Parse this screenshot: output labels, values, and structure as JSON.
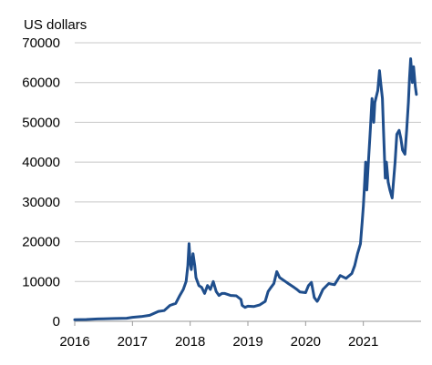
{
  "chart_data": {
    "type": "line",
    "ylabel": "US dollars",
    "xlabel": "",
    "title": "",
    "xlim": [
      2016,
      2022
    ],
    "ylim": [
      0,
      70000
    ],
    "yticks": [
      0,
      10000,
      20000,
      30000,
      40000,
      50000,
      60000,
      70000
    ],
    "ytick_labels": [
      "0",
      "10000",
      "20000",
      "30000",
      "40000",
      "50000",
      "60000",
      "70000"
    ],
    "xticks": [
      2016,
      2017,
      2018,
      2019,
      2020,
      2021
    ],
    "xtick_labels": [
      "2016",
      "2017",
      "2018",
      "2019",
      "2020",
      "2021"
    ],
    "grid": "horizontal",
    "legend": "none",
    "colors": {
      "line": "#1f4e8c",
      "grid": "#c8c8c8",
      "axis": "#999999"
    },
    "series": [
      {
        "x": [
          2016.0,
          2016.2,
          2016.4,
          2016.5,
          2016.7,
          2016.9,
          2017.0,
          2017.15,
          2017.3,
          2017.45,
          2017.55,
          2017.65,
          2017.75,
          2017.82,
          2017.88,
          2017.93,
          2017.96,
          2017.98,
          2018.0,
          2018.02,
          2018.05,
          2018.08,
          2018.1,
          2018.15,
          2018.2,
          2018.25,
          2018.3,
          2018.35,
          2018.4,
          2018.45,
          2018.5,
          2018.55,
          2018.6,
          2018.7,
          2018.8,
          2018.88,
          2018.9,
          2018.95,
          2019.0,
          2019.1,
          2019.2,
          2019.3,
          2019.35,
          2019.4,
          2019.45,
          2019.5,
          2019.55,
          2019.6,
          2019.65,
          2019.7,
          2019.8,
          2019.85,
          2019.9,
          2020.0,
          2020.05,
          2020.1,
          2020.15,
          2020.2,
          2020.22,
          2020.3,
          2020.4,
          2020.5,
          2020.6,
          2020.7,
          2020.8,
          2020.85,
          2020.9,
          2020.95,
          2020.98,
          2021.0,
          2021.02,
          2021.04,
          2021.06,
          2021.08,
          2021.12,
          2021.15,
          2021.18,
          2021.2,
          2021.25,
          2021.28,
          2021.3,
          2021.33,
          2021.35,
          2021.38,
          2021.4,
          2021.43,
          2021.46,
          2021.5,
          2021.55,
          2021.58,
          2021.62,
          2021.65,
          2021.68,
          2021.72,
          2021.75,
          2021.78,
          2021.8,
          2021.82,
          2021.85,
          2021.87,
          2021.9,
          2021.92
        ],
        "y": [
          400,
          450,
          600,
          650,
          700,
          780,
          1000,
          1200,
          1500,
          2500,
          2700,
          4000,
          4500,
          6500,
          8000,
          10000,
          14000,
          19500,
          15000,
          13000,
          17000,
          14000,
          11000,
          9000,
          8500,
          7000,
          9000,
          8000,
          10000,
          7500,
          6500,
          7000,
          7000,
          6500,
          6400,
          5500,
          4000,
          3500,
          3800,
          3700,
          4100,
          5000,
          7500,
          8500,
          9500,
          12500,
          11000,
          10500,
          10000,
          9500,
          8500,
          8000,
          7400,
          7200,
          9000,
          9800,
          6000,
          5000,
          5500,
          8000,
          9500,
          9200,
          11500,
          10800,
          12000,
          14000,
          17000,
          19500,
          25000,
          29000,
          34000,
          40000,
          33000,
          38000,
          48000,
          56000,
          50000,
          55000,
          58000,
          63000,
          60000,
          56000,
          48000,
          36000,
          40000,
          35000,
          33000,
          31000,
          40000,
          47000,
          48000,
          46000,
          43000,
          42000,
          48000,
          55000,
          61000,
          66000,
          60000,
          64000,
          59000,
          57000
        ]
      }
    ]
  }
}
